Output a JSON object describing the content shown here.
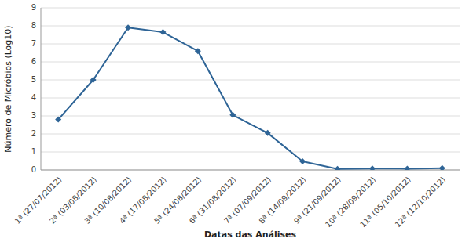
{
  "chart_data": {
    "type": "line",
    "categories": [
      "1ª (27/07/2012)",
      "2ª (03/08/2012)",
      "3ª (10/08/2012)",
      "4ª (17/08/2012)",
      "5ª (24/08/2012)",
      "6ª (31/08/2012)",
      "7ª (07/09/2012)",
      "8ª (14/09/2012)",
      "9ª (21/09/2012)",
      "10ª (28/09/2012)",
      "11ª (05/10/2012)",
      "12ª (12/10/2012)"
    ],
    "values": [
      2.8,
      5.0,
      7.9,
      7.65,
      6.6,
      3.05,
      2.05,
      0.48,
      0.05,
      0.08,
      0.07,
      0.1
    ],
    "ylabel": "Número de Micróbios (Log10)",
    "xlabel": "Datas das Análises",
    "ylim": [
      0,
      9
    ],
    "yticks": [
      0,
      1,
      2,
      3,
      4,
      5,
      6,
      7,
      8,
      9
    ],
    "color": "#2E6496",
    "marker": "diamond",
    "grid": "y"
  }
}
